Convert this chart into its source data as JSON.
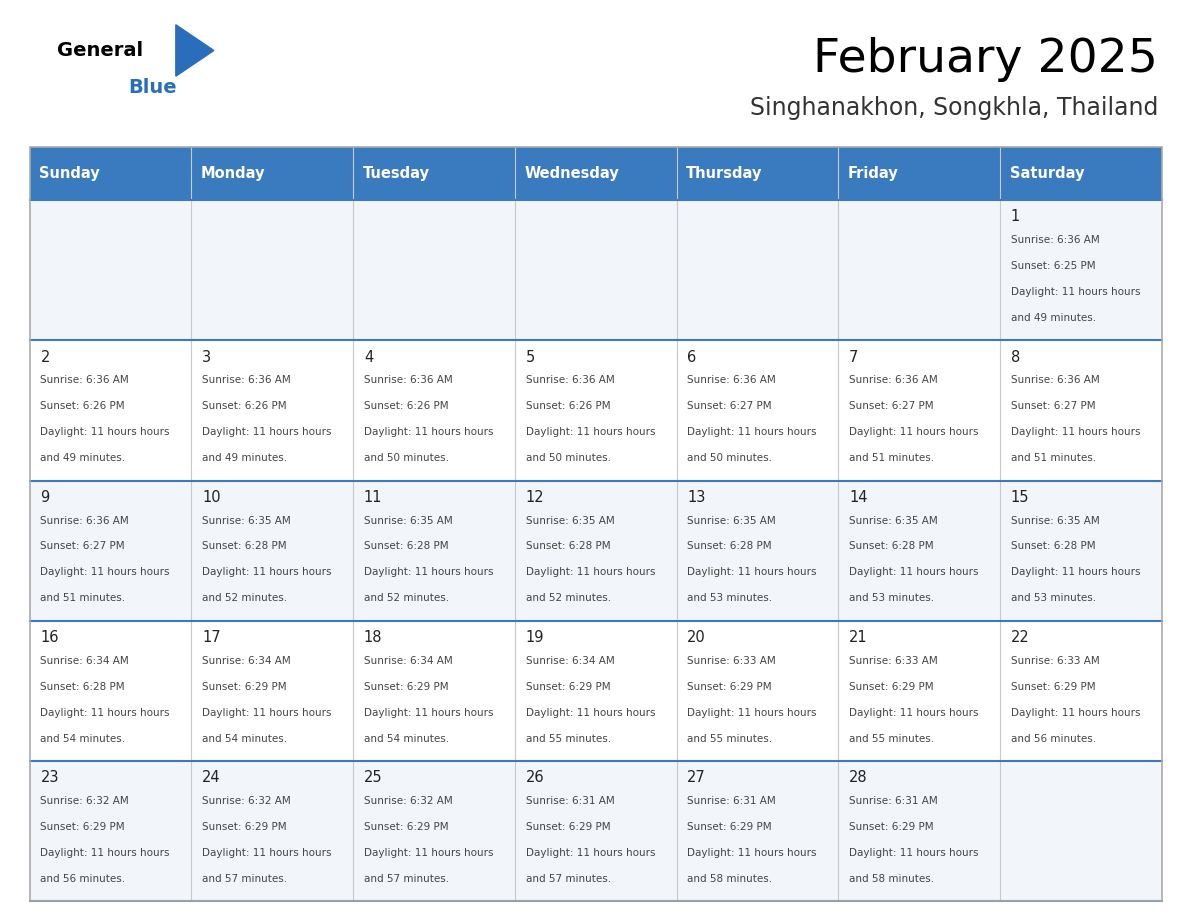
{
  "title": "February 2025",
  "subtitle": "Singhanakhon, Songkhla, Thailand",
  "header_color": "#3a7abf",
  "header_text_color": "#ffffff",
  "days_of_week": [
    "Sunday",
    "Monday",
    "Tuesday",
    "Wednesday",
    "Thursday",
    "Friday",
    "Saturday"
  ],
  "row_bg_odd": "#f2f5f9",
  "row_bg_even": "#ffffff",
  "row_line_color": "#3a7abf",
  "grid_color": "#c8c8c8",
  "text_color": "#444444",
  "day_num_color": "#222222",
  "calendar_data": [
    [
      null,
      null,
      null,
      null,
      null,
      null,
      {
        "day": 1,
        "sunrise": "6:36 AM",
        "sunset": "6:25 PM",
        "daylight": "11 hours and 49 minutes."
      }
    ],
    [
      {
        "day": 2,
        "sunrise": "6:36 AM",
        "sunset": "6:26 PM",
        "daylight": "11 hours and 49 minutes."
      },
      {
        "day": 3,
        "sunrise": "6:36 AM",
        "sunset": "6:26 PM",
        "daylight": "11 hours and 49 minutes."
      },
      {
        "day": 4,
        "sunrise": "6:36 AM",
        "sunset": "6:26 PM",
        "daylight": "11 hours and 50 minutes."
      },
      {
        "day": 5,
        "sunrise": "6:36 AM",
        "sunset": "6:26 PM",
        "daylight": "11 hours and 50 minutes."
      },
      {
        "day": 6,
        "sunrise": "6:36 AM",
        "sunset": "6:27 PM",
        "daylight": "11 hours and 50 minutes."
      },
      {
        "day": 7,
        "sunrise": "6:36 AM",
        "sunset": "6:27 PM",
        "daylight": "11 hours and 51 minutes."
      },
      {
        "day": 8,
        "sunrise": "6:36 AM",
        "sunset": "6:27 PM",
        "daylight": "11 hours and 51 minutes."
      }
    ],
    [
      {
        "day": 9,
        "sunrise": "6:36 AM",
        "sunset": "6:27 PM",
        "daylight": "11 hours and 51 minutes."
      },
      {
        "day": 10,
        "sunrise": "6:35 AM",
        "sunset": "6:28 PM",
        "daylight": "11 hours and 52 minutes."
      },
      {
        "day": 11,
        "sunrise": "6:35 AM",
        "sunset": "6:28 PM",
        "daylight": "11 hours and 52 minutes."
      },
      {
        "day": 12,
        "sunrise": "6:35 AM",
        "sunset": "6:28 PM",
        "daylight": "11 hours and 52 minutes."
      },
      {
        "day": 13,
        "sunrise": "6:35 AM",
        "sunset": "6:28 PM",
        "daylight": "11 hours and 53 minutes."
      },
      {
        "day": 14,
        "sunrise": "6:35 AM",
        "sunset": "6:28 PM",
        "daylight": "11 hours and 53 minutes."
      },
      {
        "day": 15,
        "sunrise": "6:35 AM",
        "sunset": "6:28 PM",
        "daylight": "11 hours and 53 minutes."
      }
    ],
    [
      {
        "day": 16,
        "sunrise": "6:34 AM",
        "sunset": "6:28 PM",
        "daylight": "11 hours and 54 minutes."
      },
      {
        "day": 17,
        "sunrise": "6:34 AM",
        "sunset": "6:29 PM",
        "daylight": "11 hours and 54 minutes."
      },
      {
        "day": 18,
        "sunrise": "6:34 AM",
        "sunset": "6:29 PM",
        "daylight": "11 hours and 54 minutes."
      },
      {
        "day": 19,
        "sunrise": "6:34 AM",
        "sunset": "6:29 PM",
        "daylight": "11 hours and 55 minutes."
      },
      {
        "day": 20,
        "sunrise": "6:33 AM",
        "sunset": "6:29 PM",
        "daylight": "11 hours and 55 minutes."
      },
      {
        "day": 21,
        "sunrise": "6:33 AM",
        "sunset": "6:29 PM",
        "daylight": "11 hours and 55 minutes."
      },
      {
        "day": 22,
        "sunrise": "6:33 AM",
        "sunset": "6:29 PM",
        "daylight": "11 hours and 56 minutes."
      }
    ],
    [
      {
        "day": 23,
        "sunrise": "6:32 AM",
        "sunset": "6:29 PM",
        "daylight": "11 hours and 56 minutes."
      },
      {
        "day": 24,
        "sunrise": "6:32 AM",
        "sunset": "6:29 PM",
        "daylight": "11 hours and 57 minutes."
      },
      {
        "day": 25,
        "sunrise": "6:32 AM",
        "sunset": "6:29 PM",
        "daylight": "11 hours and 57 minutes."
      },
      {
        "day": 26,
        "sunrise": "6:31 AM",
        "sunset": "6:29 PM",
        "daylight": "11 hours and 57 minutes."
      },
      {
        "day": 27,
        "sunrise": "6:31 AM",
        "sunset": "6:29 PM",
        "daylight": "11 hours and 58 minutes."
      },
      {
        "day": 28,
        "sunrise": "6:31 AM",
        "sunset": "6:29 PM",
        "daylight": "11 hours and 58 minutes."
      },
      null
    ]
  ],
  "figsize": [
    11.88,
    9.18
  ],
  "dpi": 100
}
